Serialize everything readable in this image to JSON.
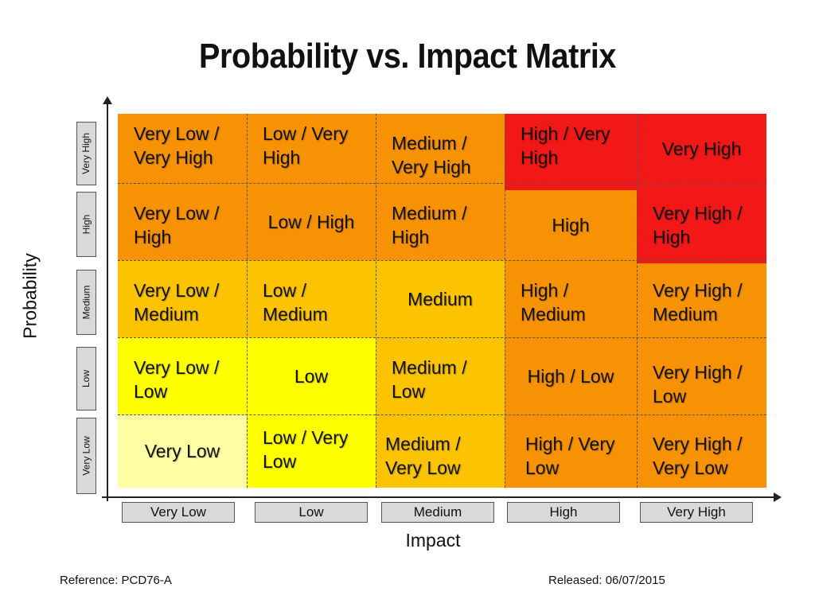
{
  "title": "Probability vs. Impact Matrix",
  "axes": {
    "y_label": "Probability",
    "x_label": "Impact",
    "y_levels": [
      "Very High",
      "High",
      "Medium",
      "Low",
      "Very Low"
    ],
    "x_levels": [
      "Very Low",
      "Low",
      "Medium",
      "High",
      "Very High"
    ]
  },
  "colors": {
    "very_high_risk": "#f21818",
    "high_risk": "#f79205",
    "medium_risk": "#fbc300",
    "low_risk": "#ffff00",
    "very_low_risk": "#ffffa6"
  },
  "matrix": [
    [
      {
        "text": "Very Low / Very High",
        "color": "#f79205"
      },
      {
        "text": "Low / Very High",
        "color": "#f79205"
      },
      {
        "text": "Medium / Very High",
        "color": "#f79205"
      },
      {
        "text": "High / Very High",
        "color": "#f21818"
      },
      {
        "text": "Very High",
        "color": "#f21818"
      }
    ],
    [
      {
        "text": "Very Low / High",
        "color": "#f79205"
      },
      {
        "text": "Low / High",
        "color": "#f79205"
      },
      {
        "text": "Medium / High",
        "color": "#f79205"
      },
      {
        "text": "High",
        "color": "#f79205"
      },
      {
        "text": "Very High / High",
        "color": "#f21818"
      }
    ],
    [
      {
        "text": "Very Low / Medium",
        "color": "#fbc300"
      },
      {
        "text": "Low / Medium",
        "color": "#fbc300"
      },
      {
        "text": "Medium",
        "color": "#fbc300"
      },
      {
        "text": "High / Medium",
        "color": "#f79205"
      },
      {
        "text": "Very High / Medium",
        "color": "#f79205"
      }
    ],
    [
      {
        "text": "Very Low / Low",
        "color": "#ffff00"
      },
      {
        "text": "Low",
        "color": "#ffff00"
      },
      {
        "text": "Medium / Low",
        "color": "#fbc300"
      },
      {
        "text": "High / Low",
        "color": "#f79205"
      },
      {
        "text": "Very High / Low",
        "color": "#f79205"
      }
    ],
    [
      {
        "text": "Very Low",
        "color": "#ffffa6"
      },
      {
        "text": "Low / Very Low",
        "color": "#ffff00"
      },
      {
        "text": "Medium / Very Low",
        "color": "#fbc300"
      },
      {
        "text": "High / Very Low",
        "color": "#f79205"
      },
      {
        "text": "Very High / Very Low",
        "color": "#f79205"
      }
    ]
  ],
  "footer": {
    "reference": "Reference: PCD76-A",
    "released": "Released: 06/07/2015"
  }
}
